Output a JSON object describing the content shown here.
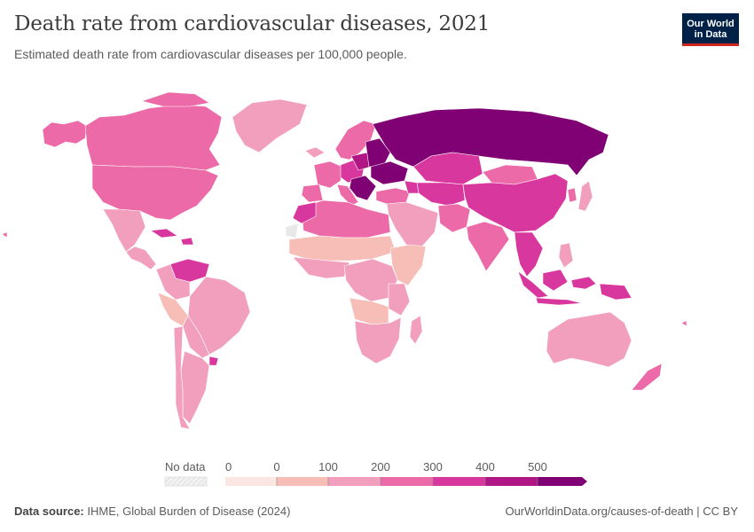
{
  "header": {
    "title": "Death rate from cardiovascular diseases, 2021",
    "subtitle": "Estimated death rate from cardiovascular diseases per 100,000 people."
  },
  "logo": {
    "line1": "Our World",
    "line2": "in Data"
  },
  "legend": {
    "no_data_label": "No data",
    "tick_labels": [
      "0",
      "0",
      "100",
      "200",
      "300",
      "400",
      "500"
    ],
    "bin_colors": [
      "#fbe7e1",
      "#f7bdb7",
      "#f29fbd",
      "#ec6aa7",
      "#d8379d",
      "#b01784",
      "#7f0173"
    ]
  },
  "footer": {
    "source_label": "Data source:",
    "source_text": "IHME, Global Burden of Disease (2024)",
    "url_text": "OurWorldinData.org/causes-of-death | CC BY"
  },
  "colors": {
    "very_high": "#7f0173",
    "high": "#b01784",
    "upper_mid": "#d8379d",
    "mid": "#ec6aa7",
    "lower_mid": "#f29fbd",
    "low": "#f7bdb7",
    "very_low": "#fbe7e1",
    "no_data": "#e8e8e8",
    "border": "#ffffff"
  }
}
